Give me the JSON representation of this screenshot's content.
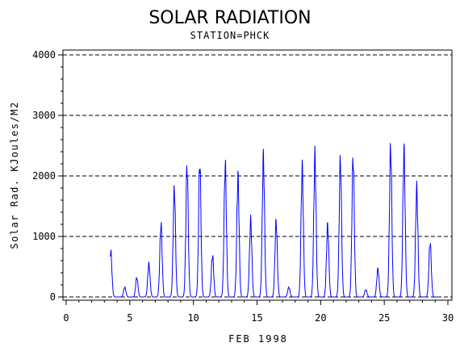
{
  "chart_data": {
    "type": "line",
    "title": "SOLAR RADIATION",
    "subtitle": "STATION=PHCK",
    "xlabel": "FEB 1998",
    "ylabel": "Solar Rad. KJoules/M2",
    "xlim": [
      0,
      30
    ],
    "ylim": [
      0,
      4000
    ],
    "x_ticks": [
      0,
      5,
      10,
      15,
      20,
      25,
      30
    ],
    "y_ticks": [
      0,
      1000,
      2000,
      3000,
      4000
    ],
    "grid": "horizontal dashed",
    "series_color": "#0000ff",
    "daily_peaks": [
      {
        "day": 3.5,
        "peak": 760
      },
      {
        "day": 4.6,
        "peak": 160
      },
      {
        "day": 5.55,
        "peak": 320
      },
      {
        "day": 6.5,
        "peak": 540
      },
      {
        "day": 7.45,
        "peak": 1200
      },
      {
        "day": 8.5,
        "peak": 1780
      },
      {
        "day": 9.5,
        "peak": 2160
      },
      {
        "day": 10.5,
        "peak": 2220
      },
      {
        "day": 11.5,
        "peak": 680
      },
      {
        "day": 12.5,
        "peak": 2180
      },
      {
        "day": 13.5,
        "peak": 1980
      },
      {
        "day": 14.5,
        "peak": 1260
      },
      {
        "day": 15.5,
        "peak": 2300
      },
      {
        "day": 16.5,
        "peak": 1240
      },
      {
        "day": 17.5,
        "peak": 160
      },
      {
        "day": 18.55,
        "peak": 2120
      },
      {
        "day": 19.55,
        "peak": 2320
      },
      {
        "day": 20.55,
        "peak": 1180
      },
      {
        "day": 21.55,
        "peak": 2260
      },
      {
        "day": 22.55,
        "peak": 2300
      },
      {
        "day": 23.55,
        "peak": 120
      },
      {
        "day": 24.5,
        "peak": 460
      },
      {
        "day": 25.5,
        "peak": 2460
      },
      {
        "day": 26.55,
        "peak": 2400
      },
      {
        "day": 27.55,
        "peak": 1780
      },
      {
        "day": 28.6,
        "peak": 900
      }
    ]
  }
}
